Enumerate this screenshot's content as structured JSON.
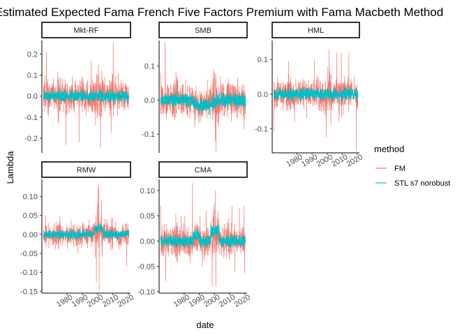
{
  "chart_data": {
    "type": "line",
    "title": "Estimated Expected Fama French Five Factors Premium with Fama Macbeth Method",
    "xlabel": "date",
    "ylabel": "Lambda",
    "x_ticks": [
      1980,
      1990,
      2000,
      2010,
      2020
    ],
    "x_range": [
      1963.5,
      2021.5
    ],
    "grid": false,
    "legend": {
      "title": "method",
      "position": "right",
      "entries": [
        {
          "name": "FM",
          "color": "#F8766D"
        },
        {
          "name": "STL s7 norobust",
          "color": "#00BFC4"
        }
      ]
    },
    "panels": [
      {
        "name": "Mkt-RF",
        "ylim": [
          -0.27,
          0.265
        ],
        "y_ticks": [
          -0.2,
          -0.1,
          0.0,
          0.1,
          0.2
        ],
        "y_tick_labels": [
          "-0.2",
          "-0.1",
          "0.0",
          "0.1",
          "0.2"
        ],
        "fm_amp": 0.065,
        "stl_amp": 0.018,
        "spikes": [
          [
            1966.5,
            0.21
          ],
          [
            1974.5,
            -0.13
          ],
          [
            1979.3,
            -0.235
          ],
          [
            1987.8,
            -0.22
          ],
          [
            1995.8,
            0.17
          ],
          [
            1998.7,
            -0.14
          ],
          [
            2000.6,
            0.15
          ],
          [
            2001.8,
            -0.25
          ],
          [
            2008.8,
            -0.175
          ],
          [
            2010.2,
            0.255
          ],
          [
            2013.5,
            0.11
          ]
        ]
      },
      {
        "name": "SMB",
        "ylim": [
          -0.155,
          0.175
        ],
        "y_ticks": [
          -0.1,
          0.0,
          0.1
        ],
        "y_tick_labels": [
          "-0.1",
          "0.0",
          "0.1"
        ],
        "fm_amp": 0.04,
        "stl_amp": 0.014,
        "spikes": [
          [
            1964.5,
            0.08
          ],
          [
            1967.5,
            0.17
          ],
          [
            1975.3,
            0.07
          ],
          [
            1981.0,
            0.06
          ],
          [
            1987.0,
            -0.08
          ],
          [
            1995.3,
            0.06
          ],
          [
            1999.5,
            0.09
          ],
          [
            2000.6,
            -0.12
          ],
          [
            2001.0,
            -0.15
          ],
          [
            2004.0,
            0.07
          ],
          [
            2011.5,
            -0.04
          ],
          [
            2015.3,
            0.065
          ],
          [
            2019.5,
            -0.085
          ]
        ],
        "stl_shift": [
          [
            1987.0,
            1999.0,
            -0.015
          ]
        ]
      },
      {
        "name": "HML",
        "ylim": [
          -0.17,
          0.155
        ],
        "y_ticks": [
          -0.1,
          0.0,
          0.1
        ],
        "y_tick_labels": [
          "-0.1",
          "0.0",
          "0.1"
        ],
        "fm_amp": 0.036,
        "stl_amp": 0.012,
        "spikes": [
          [
            1964.5,
            -0.11
          ],
          [
            1974.5,
            0.095
          ],
          [
            1978.3,
            -0.08
          ],
          [
            1986.5,
            -0.07
          ],
          [
            1991.5,
            0.1
          ],
          [
            1999.5,
            -0.125
          ],
          [
            2000.5,
            0.08
          ],
          [
            2001.3,
            0.13
          ],
          [
            2002.5,
            -0.09
          ],
          [
            2006.5,
            0.12
          ],
          [
            2008.0,
            -0.08
          ],
          [
            2009.5,
            0.12
          ],
          [
            2010.8,
            -0.06
          ],
          [
            2014.5,
            0.12
          ],
          [
            2019.5,
            -0.165
          ]
        ]
      },
      {
        "name": "RMW",
        "ylim": [
          -0.155,
          0.145
        ],
        "y_ticks": [
          -0.15,
          -0.1,
          -0.05,
          0.0,
          0.05,
          0.1
        ],
        "y_tick_labels": [
          "-0.15",
          "-0.10",
          "-0.05",
          "0.00",
          "0.05",
          "0.10"
        ],
        "fm_amp": 0.026,
        "stl_amp": 0.008,
        "spikes": [
          [
            1966.0,
            0.05
          ],
          [
            1972.5,
            -0.04
          ],
          [
            1987.0,
            -0.05
          ],
          [
            1994.5,
            0.04
          ],
          [
            1998.5,
            -0.06
          ],
          [
            1999.2,
            -0.125
          ],
          [
            1999.8,
            0.08
          ],
          [
            2000.3,
            0.125
          ],
          [
            2000.8,
            0.135
          ],
          [
            2001.0,
            -0.15
          ],
          [
            2002.5,
            0.09
          ],
          [
            2003.0,
            -0.06
          ],
          [
            2006.0,
            0.04
          ],
          [
            2014.0,
            -0.04
          ],
          [
            2019.0,
            -0.085
          ]
        ],
        "stl_shift": [
          [
            1997.5,
            2003.5,
            0.015
          ]
        ]
      },
      {
        "name": "CMA",
        "ylim": [
          -0.103,
          0.122
        ],
        "y_ticks": [
          -0.1,
          -0.05,
          0.0,
          0.05,
          0.1
        ],
        "y_tick_labels": [
          "-0.10",
          "-0.05",
          "0.00",
          "0.05",
          "0.10"
        ],
        "fm_amp": 0.024,
        "stl_amp": 0.008,
        "spikes": [
          [
            1964.5,
            0.07
          ],
          [
            1967.8,
            -0.08
          ],
          [
            1974.5,
            0.055
          ],
          [
            1978.0,
            0.05
          ],
          [
            1980.5,
            0.05
          ],
          [
            1984.0,
            -0.045
          ],
          [
            1985.5,
            0.115
          ],
          [
            1990.5,
            0.05
          ],
          [
            1992.0,
            -0.05
          ],
          [
            1994.5,
            0.06
          ],
          [
            1998.5,
            -0.09
          ],
          [
            1999.8,
            0.075
          ],
          [
            2000.6,
            0.1
          ],
          [
            2000.9,
            -0.09
          ],
          [
            2002.5,
            0.06
          ],
          [
            2009.5,
            0.045
          ],
          [
            2011.5,
            0.07
          ],
          [
            2013.5,
            -0.06
          ],
          [
            2016.5,
            0.065
          ],
          [
            2019.5,
            0.07
          ],
          [
            2019.8,
            -0.065
          ]
        ],
        "stl_shift": [
          [
            1986.0,
            1990.0,
            0.012
          ],
          [
            1997.5,
            2003.0,
            0.02
          ]
        ]
      }
    ]
  }
}
